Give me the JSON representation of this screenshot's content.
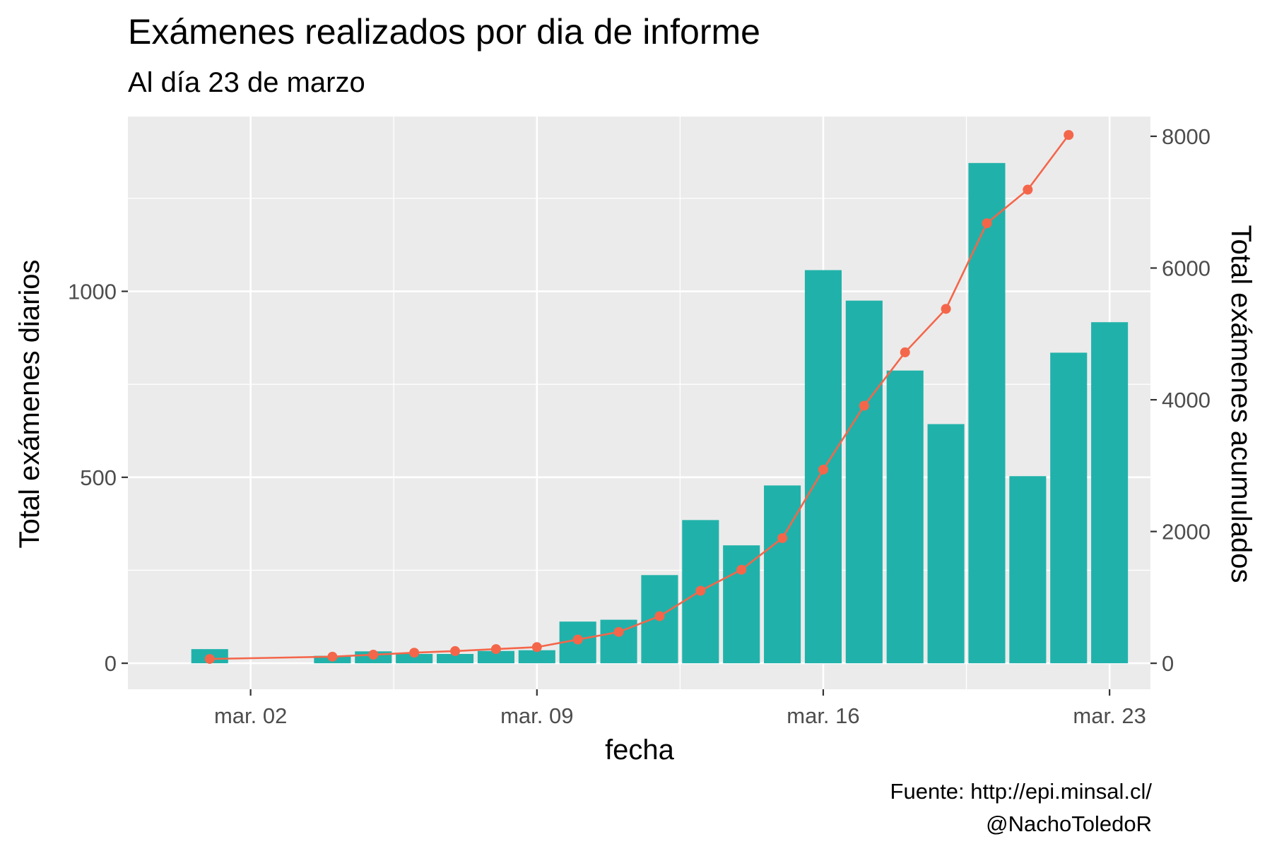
{
  "chart_data": {
    "type": "bar",
    "title": "Exámenes realizados por dia de informe",
    "subtitle": "Al día 23 de marzo",
    "xlabel": "fecha",
    "ylabel": "Total exámenes diarios",
    "y2label": "Total exámenes acumulados",
    "caption": [
      "Fuente: http://epi.minsal.cl/",
      "@NachoToledoR"
    ],
    "x_ticks": [
      "2020-03-02",
      "2020-03-09",
      "2020-03-16",
      "2020-03-23"
    ],
    "x_tick_labels": [
      "mar. 02",
      "mar. 09",
      "mar. 16",
      "mar. 23"
    ],
    "y_ticks": [
      0,
      500,
      1000
    ],
    "y2_ticks": [
      0,
      2000,
      4000,
      6000,
      8000
    ],
    "xlim": [
      "2020-02-28",
      "2020-03-24"
    ],
    "ylim": [
      -70,
      1470
    ],
    "y2lim": [
      -395,
      8300
    ],
    "grid": true,
    "series": [
      {
        "type": "bar",
        "axis": "left",
        "color": "#20b2aa",
        "x": [
          "2020-03-01",
          "2020-03-04",
          "2020-03-05",
          "2020-03-06",
          "2020-03-07",
          "2020-03-08",
          "2020-03-09",
          "2020-03-10",
          "2020-03-11",
          "2020-03-12",
          "2020-03-13",
          "2020-03-14",
          "2020-03-15",
          "2020-03-16",
          "2020-03-17",
          "2020-03-18",
          "2020-03-19",
          "2020-03-20",
          "2020-03-21",
          "2020-03-22",
          "2020-03-23"
        ],
        "values": [
          38,
          20,
          32,
          25,
          25,
          33,
          35,
          112,
          117,
          237,
          385,
          317,
          478,
          1057,
          975,
          787,
          643,
          1345,
          503,
          835,
          917
        ]
      },
      {
        "type": "line",
        "axis": "right",
        "color": "#f4664a",
        "x": [
          "2020-03-01",
          "2020-03-04",
          "2020-03-05",
          "2020-03-06",
          "2020-03-07",
          "2020-03-08",
          "2020-03-09",
          "2020-03-10",
          "2020-03-11",
          "2020-03-12",
          "2020-03-13",
          "2020-03-14",
          "2020-03-15",
          "2020-03-16",
          "2020-03-17",
          "2020-03-18",
          "2020-03-19",
          "2020-03-20",
          "2020-03-21",
          "2020-03-22"
        ],
        "values": [
          65,
          100,
          130,
          160,
          185,
          215,
          245,
          360,
          475,
          715,
          1100,
          1420,
          1900,
          2940,
          3910,
          4720,
          5380,
          6680,
          7190,
          8020
        ]
      }
    ]
  }
}
